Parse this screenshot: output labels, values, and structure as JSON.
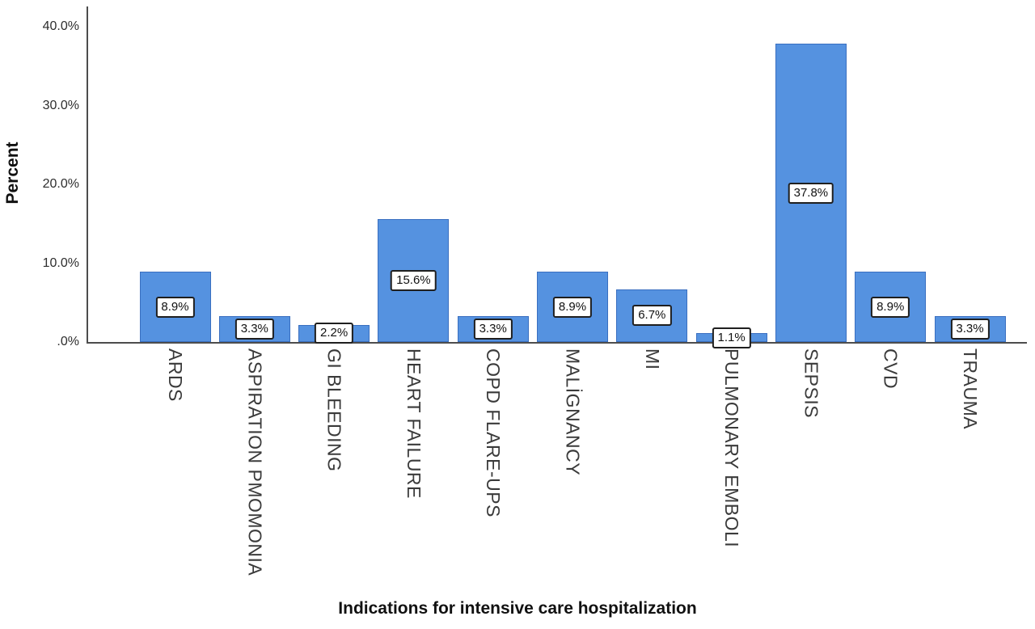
{
  "chart_data": {
    "type": "bar",
    "title": "",
    "xlabel": "Indications for intensive care hospitalization",
    "ylabel": "Percent",
    "categories": [
      "ARDS",
      "ASPIRATION PMOMONIA",
      "GI BLEEDING",
      "HEART FAILURE",
      "COPD FLARE-UPS",
      "MALİGNANCY",
      "MI",
      "PULMONARY EMBOLI",
      "SEPSIS",
      "CVD",
      "TRAUMA"
    ],
    "values": [
      8.9,
      3.3,
      2.2,
      15.6,
      3.3,
      8.9,
      6.7,
      1.1,
      37.8,
      8.9,
      3.3
    ],
    "value_labels": [
      "8.9%",
      "3.3%",
      "2.2%",
      "15.6%",
      "3.3%",
      "8.9%",
      "6.7%",
      "1.1%",
      "37.8%",
      "8.9%",
      "3.3%"
    ],
    "ylim": [
      0,
      40
    ],
    "ytick_values": [
      0,
      10,
      20,
      30,
      40
    ],
    "ytick_labels": [
      ".0%",
      "10.0%",
      "20.0%",
      "30.0%",
      "40.0%"
    ],
    "grid": false,
    "legend": false,
    "bar_color": "#5592e0",
    "bar_border_color": "#3a6fc0",
    "axis_color": "#4d4d4d",
    "value_box_bg": "#ffffff",
    "value_box_border": "#1f1f1f"
  }
}
